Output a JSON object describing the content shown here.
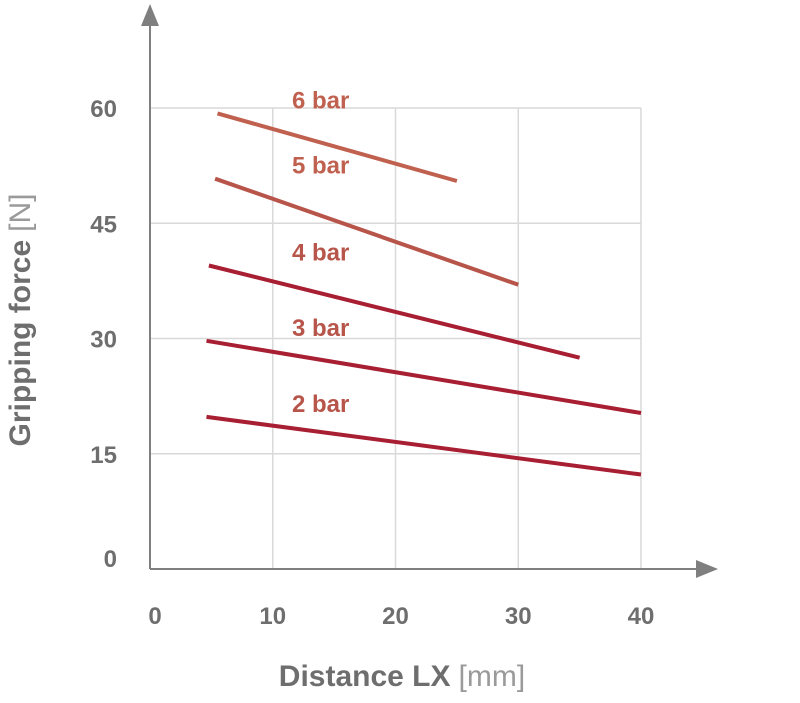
{
  "chart_data": {
    "type": "line",
    "title": "",
    "xlabel": "Distance LX",
    "xunit": "[mm]",
    "ylabel": "Gripping force",
    "yunit": "[N]",
    "xlim": [
      0,
      40
    ],
    "ylim": [
      0,
      60
    ],
    "xticks": [
      "0",
      "10",
      "20",
      "30",
      "40"
    ],
    "yticks": [
      "0",
      "15",
      "30",
      "45",
      "60"
    ],
    "grid": true,
    "legend": "inline labels",
    "series": [
      {
        "name": "6 bar",
        "color": "#c0604f",
        "points": [
          [
            5.5,
            59.3
          ],
          [
            25,
            50.5
          ]
        ]
      },
      {
        "name": "5 bar",
        "color": "#b8554a",
        "points": [
          [
            5.3,
            50.8
          ],
          [
            30,
            37.0
          ]
        ]
      },
      {
        "name": "4 bar",
        "color": "#a81e32",
        "points": [
          [
            4.8,
            39.5
          ],
          [
            35,
            27.5
          ]
        ]
      },
      {
        "name": "3 bar",
        "color": "#a81e32",
        "points": [
          [
            4.6,
            29.7
          ],
          [
            40,
            20.3
          ]
        ]
      },
      {
        "name": "2 bar",
        "color": "#a81e32",
        "points": [
          [
            4.6,
            19.8
          ],
          [
            40,
            12.3
          ]
        ]
      }
    ]
  }
}
